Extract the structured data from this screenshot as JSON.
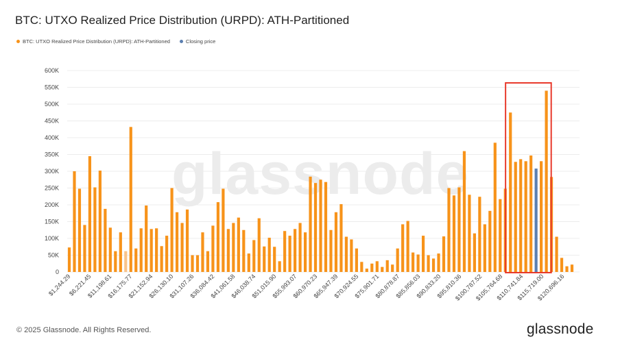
{
  "title": "BTC: UTXO Realized Price Distribution (URPD): ATH-Partitioned",
  "legend": [
    {
      "label": "BTC: UTXO Realized Price Distribution (URPD): ATH-Partitioned",
      "color": "#f7931a"
    },
    {
      "label": "Closing price",
      "color": "#5b7fb0"
    }
  ],
  "watermark": "glassnode",
  "footer": {
    "copyright": "© 2025 Glassnode. All Rights Reserved.",
    "logo": "glassnode"
  },
  "colors": {
    "bar": "#f7931a",
    "bar_faded": "#f9c38a",
    "closing": "#5b7fb0",
    "highlight": "#e8392b",
    "grid": "#ececec"
  },
  "chart_data": {
    "type": "bar",
    "title": "BTC: UTXO Realized Price Distribution (URPD): ATH-Partitioned",
    "ylim": [
      0,
      600000
    ],
    "yticks": [
      0,
      50000,
      100000,
      150000,
      200000,
      250000,
      300000,
      350000,
      400000,
      450000,
      500000,
      550000,
      600000
    ],
    "ytick_labels": [
      "0",
      "50K",
      "100K",
      "150K",
      "200K",
      "250K",
      "300K",
      "350K",
      "400K",
      "450K",
      "500K",
      "550K",
      "600K"
    ],
    "xtick_labels": [
      "$1,244.29",
      "$6,221.45",
      "$11,198.61",
      "$16,175.77",
      "$21,152.94",
      "$26,130.10",
      "$31,107.26",
      "$36,084.42",
      "$41,061.58",
      "$46,038.74",
      "$51,015.90",
      "$55,993.07",
      "$60,970.23",
      "$65,947.39",
      "$70,924.55",
      "$75,901.71",
      "$80,878.87",
      "$85,856.03",
      "$90,833.20",
      "$95,810.36",
      "$100,787.52",
      "$105,764.68",
      "$110,741.84",
      "$115,719.00",
      "$120,696.16"
    ],
    "values": [
      73000,
      300000,
      248000,
      140000,
      345000,
      252000,
      302000,
      188000,
      132000,
      62000,
      118000,
      62000,
      432000,
      70000,
      130000,
      198000,
      128000,
      130000,
      77000,
      108000,
      250000,
      178000,
      146000,
      186000,
      50000,
      50000,
      118000,
      62000,
      138000,
      208000,
      248000,
      128000,
      146000,
      162000,
      125000,
      55000,
      95000,
      160000,
      76000,
      102000,
      75000,
      32000,
      122000,
      108000,
      128000,
      146000,
      118000,
      284000,
      265000,
      275000,
      268000,
      125000,
      178000,
      202000,
      105000,
      97000,
      70000,
      30000,
      10000,
      25000,
      32000,
      15000,
      35000,
      22000,
      70000,
      142000,
      152000,
      58000,
      52000,
      108000,
      50000,
      40000,
      55000,
      106000,
      250000,
      228000,
      252000,
      360000,
      230000,
      115000,
      224000,
      142000,
      182000,
      385000,
      217000,
      248000,
      475000,
      328000,
      336000,
      330000,
      347000,
      308000,
      330000,
      540000,
      283000,
      105000,
      42000,
      17000,
      22000
    ],
    "closing_price_index": 91,
    "faded_indices": [
      11
    ],
    "annotation": "highlight box around bars from ~$108K to ~$117K"
  }
}
